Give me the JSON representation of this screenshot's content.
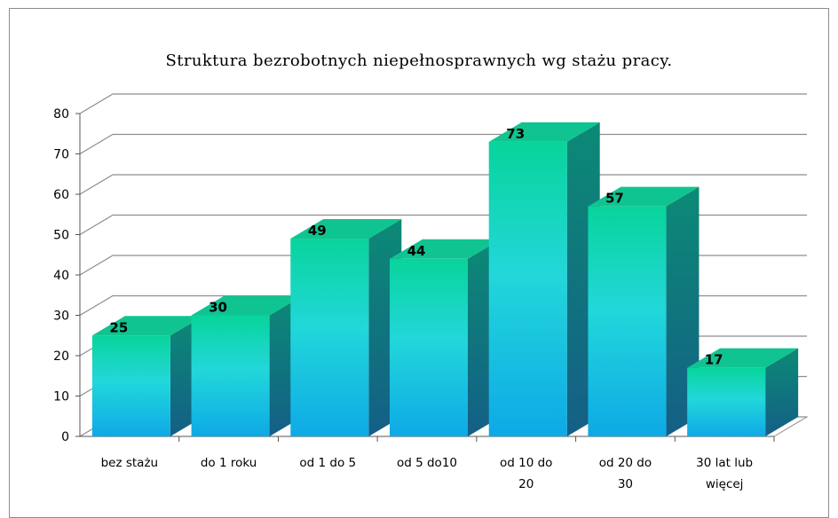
{
  "chart_data": {
    "type": "bar",
    "title": "Struktura bezrobotnych niepełnosprawnych wg stażu pracy.",
    "categories": [
      [
        "bez stażu"
      ],
      [
        "do 1 roku"
      ],
      [
        "od 1 do 5"
      ],
      [
        "od 5 do10"
      ],
      [
        "od 10 do",
        "20"
      ],
      [
        "od 20 do",
        "30"
      ],
      [
        "30 lat lub",
        "więcej"
      ]
    ],
    "values": [
      25,
      30,
      49,
      44,
      73,
      57,
      17
    ],
    "ylim": [
      0,
      80
    ],
    "yticks": [
      0,
      10,
      20,
      30,
      40,
      50,
      60,
      70,
      80
    ],
    "grid": true,
    "data_labels": true,
    "legend": "none",
    "style": "3d-column",
    "colors": {
      "bar_top": "#08d49b",
      "bar_mid": "#22d7da",
      "bar_bottom": "#0ea9e6",
      "side_top": "#0c8a76",
      "side_bottom": "#145f86",
      "cap": "#10c491",
      "grid": "#8e8e8e"
    }
  }
}
